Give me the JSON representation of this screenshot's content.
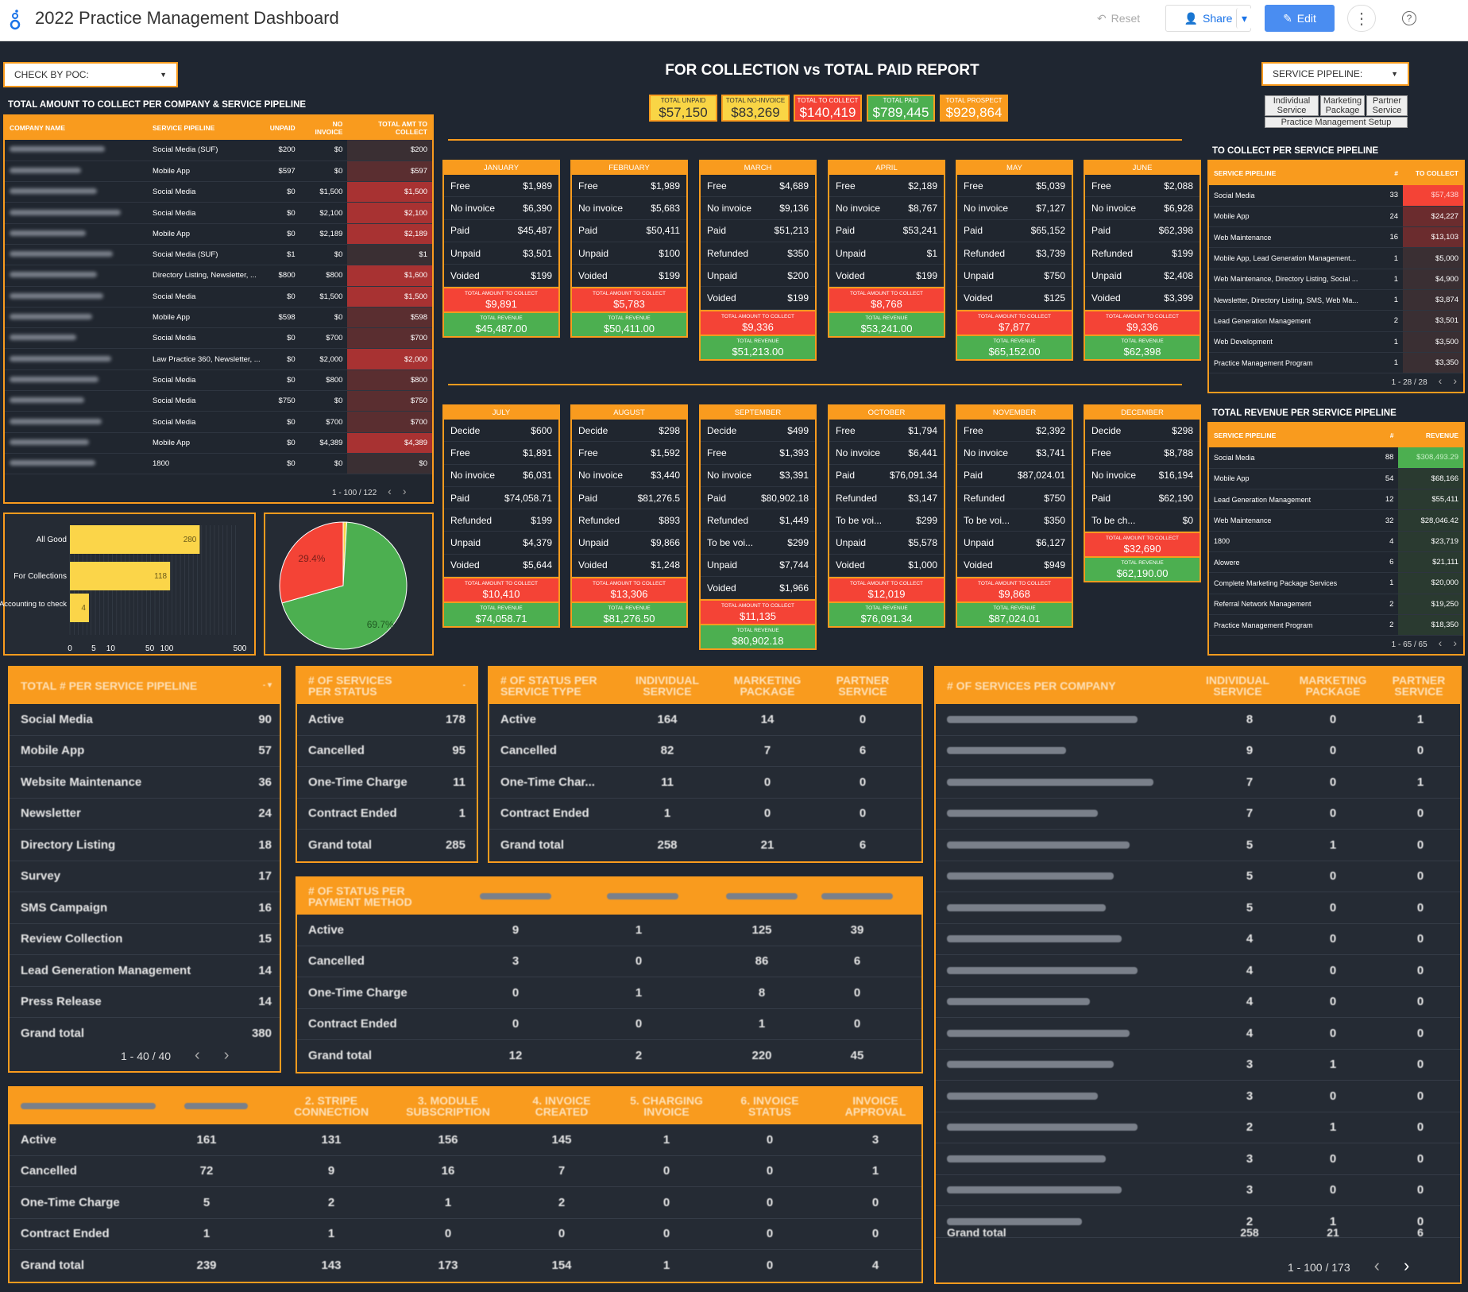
{
  "app": {
    "title": "2022 Practice Management Dashboard",
    "reset": "Reset",
    "share": "Share",
    "edit": "Edit"
  },
  "filters": {
    "poc": "CHECK BY POC:",
    "pipeline": "SERVICE PIPELINE:",
    "buttons": [
      "Individual Service",
      "Marketing Package",
      "Partner Service",
      "Practice Management Setup"
    ]
  },
  "report_title": "FOR COLLECTION vs TOTAL PAID REPORT",
  "kpis": [
    {
      "label": "TOTAL UNPAID",
      "value": "$57,150"
    },
    {
      "label": "TOTAL NO-INVOICE",
      "value": "$83,269"
    },
    {
      "label": "TOTAL TO COLLECT",
      "value": "$140,419"
    },
    {
      "label": "TOTAL PAID",
      "value": "$789,445"
    },
    {
      "label": "TOTAL PROSPECT",
      "value": "$929,864"
    }
  ],
  "company_table": {
    "title": "TOTAL AMOUNT TO COLLECT PER COMPANY & SERVICE PIPELINE",
    "headers": [
      "COMPANY NAME",
      "SERVICE PIPELINE",
      "UNPAID",
      "NO INVOICE",
      "TOTAL AMT TO COLLECT"
    ],
    "rows": [
      [
        "Social Media (SUF)",
        "$200",
        "$0",
        "$200"
      ],
      [
        "Mobile App",
        "$597",
        "$0",
        "$597"
      ],
      [
        "Social Media",
        "$0",
        "$1,500",
        "$1,500"
      ],
      [
        "Social Media",
        "$0",
        "$2,100",
        "$2,100"
      ],
      [
        "Mobile App",
        "$0",
        "$2,189",
        "$2,189"
      ],
      [
        "Social Media (SUF)",
        "$1",
        "$0",
        "$1"
      ],
      [
        "Directory Listing, Newsletter, ...",
        "$800",
        "$800",
        "$1,600"
      ],
      [
        "Social Media",
        "$0",
        "$1,500",
        "$1,500"
      ],
      [
        "Mobile App",
        "$598",
        "$0",
        "$598"
      ],
      [
        "Social Media",
        "$0",
        "$700",
        "$700"
      ],
      [
        "Law Practice 360, Newsletter, ...",
        "$0",
        "$2,000",
        "$2,000"
      ],
      [
        "Social Media",
        "$0",
        "$800",
        "$800"
      ],
      [
        "Social Media",
        "$750",
        "$0",
        "$750"
      ],
      [
        "Social Media",
        "$0",
        "$700",
        "$700"
      ],
      [
        "Mobile App",
        "$0",
        "$4,389",
        "$4,389"
      ],
      [
        "1800",
        "$0",
        "$0",
        "$0"
      ]
    ],
    "pager": "1 - 100 / 122"
  },
  "bar_chart": {
    "categories": [
      "All Good",
      "For Collections",
      "Accounting to check"
    ],
    "values": [
      280,
      118,
      4
    ],
    "ticks": [
      "0",
      "5",
      "10",
      "50",
      "100",
      "500"
    ]
  },
  "pie_chart": {
    "slices": [
      {
        "label": "29.4%",
        "value": 29.4,
        "color": "#f44336"
      },
      {
        "label": "69.7%",
        "value": 69.7,
        "color": "#4caf50"
      },
      {
        "label": "",
        "value": 0.9,
        "color": "#f9d545"
      }
    ]
  },
  "months": [
    {
      "name": "JANUARY",
      "rows": [
        [
          "Free",
          "$1,989"
        ],
        [
          "No invoice",
          "$6,390"
        ],
        [
          "Paid",
          "$45,487"
        ],
        [
          "Unpaid",
          "$3,501"
        ],
        [
          "Voided",
          "$199"
        ]
      ],
      "collect": "$9,891",
      "revenue": "$45,487.00"
    },
    {
      "name": "FEBRUARY",
      "rows": [
        [
          "Free",
          "$1,989"
        ],
        [
          "No invoice",
          "$5,683"
        ],
        [
          "Paid",
          "$50,411"
        ],
        [
          "Unpaid",
          "$100"
        ],
        [
          "Voided",
          "$199"
        ]
      ],
      "collect": "$5,783",
      "revenue": "$50,411.00"
    },
    {
      "name": "MARCH",
      "rows": [
        [
          "Free",
          "$4,689"
        ],
        [
          "No invoice",
          "$9,136"
        ],
        [
          "Paid",
          "$51,213"
        ],
        [
          "Refunded",
          "$350"
        ],
        [
          "Unpaid",
          "$200"
        ],
        [
          "Voided",
          "$199"
        ]
      ],
      "collect": "$9,336",
      "revenue": "$51,213.00"
    },
    {
      "name": "APRIL",
      "rows": [
        [
          "Free",
          "$2,189"
        ],
        [
          "No invoice",
          "$8,767"
        ],
        [
          "Paid",
          "$53,241"
        ],
        [
          "Unpaid",
          "$1"
        ],
        [
          "Voided",
          "$199"
        ]
      ],
      "collect": "$8,768",
      "revenue": "$53,241.00"
    },
    {
      "name": "MAY",
      "rows": [
        [
          "Free",
          "$5,039"
        ],
        [
          "No invoice",
          "$7,127"
        ],
        [
          "Paid",
          "$65,152"
        ],
        [
          "Refunded",
          "$3,739"
        ],
        [
          "Unpaid",
          "$750"
        ],
        [
          "Voided",
          "$125"
        ]
      ],
      "collect": "$7,877",
      "revenue": "$65,152.00"
    },
    {
      "name": "JUNE",
      "rows": [
        [
          "Free",
          "$2,088"
        ],
        [
          "No invoice",
          "$6,928"
        ],
        [
          "Paid",
          "$62,398"
        ],
        [
          "Refunded",
          "$199"
        ],
        [
          "Unpaid",
          "$2,408"
        ],
        [
          "Voided",
          "$3,399"
        ]
      ],
      "collect": "$9,336",
      "revenue": "$62,398"
    },
    {
      "name": "JULY",
      "rows": [
        [
          "Decide",
          "$600"
        ],
        [
          "Free",
          "$1,891"
        ],
        [
          "No invoice",
          "$6,031"
        ],
        [
          "Paid",
          "$74,058.71"
        ],
        [
          "Refunded",
          "$199"
        ],
        [
          "Unpaid",
          "$4,379"
        ],
        [
          "Voided",
          "$5,644"
        ]
      ],
      "collect": "$10,410",
      "revenue": "$74,058.71"
    },
    {
      "name": "AUGUST",
      "rows": [
        [
          "Decide",
          "$298"
        ],
        [
          "Free",
          "$1,592"
        ],
        [
          "No invoice",
          "$3,440"
        ],
        [
          "Paid",
          "$81,276.5"
        ],
        [
          "Refunded",
          "$893"
        ],
        [
          "Unpaid",
          "$9,866"
        ],
        [
          "Voided",
          "$1,248"
        ]
      ],
      "collect": "$13,306",
      "revenue": "$81,276.50"
    },
    {
      "name": "SEPTEMBER",
      "rows": [
        [
          "Decide",
          "$499"
        ],
        [
          "Free",
          "$1,393"
        ],
        [
          "No invoice",
          "$3,391"
        ],
        [
          "Paid",
          "$80,902.18"
        ],
        [
          "Refunded",
          "$1,449"
        ],
        [
          "To be voi...",
          "$299"
        ],
        [
          "Unpaid",
          "$7,744"
        ],
        [
          "Voided",
          "$1,966"
        ]
      ],
      "collect": "$11,135",
      "revenue": "$80,902.18"
    },
    {
      "name": "OCTOBER",
      "rows": [
        [
          "Free",
          "$1,794"
        ],
        [
          "No invoice",
          "$6,441"
        ],
        [
          "Paid",
          "$76,091.34"
        ],
        [
          "Refunded",
          "$3,147"
        ],
        [
          "To be voi...",
          "$299"
        ],
        [
          "Unpaid",
          "$5,578"
        ],
        [
          "Voided",
          "$1,000"
        ]
      ],
      "collect": "$12,019",
      "revenue": "$76,091.34"
    },
    {
      "name": "NOVEMBER",
      "rows": [
        [
          "Free",
          "$2,392"
        ],
        [
          "No invoice",
          "$3,741"
        ],
        [
          "Paid",
          "$87,024.01"
        ],
        [
          "Refunded",
          "$750"
        ],
        [
          "To be voi...",
          "$350"
        ],
        [
          "Unpaid",
          "$6,127"
        ],
        [
          "Voided",
          "$949"
        ]
      ],
      "collect": "$9,868",
      "revenue": "$87,024.01"
    },
    {
      "name": "DECEMBER",
      "rows": [
        [
          "Decide",
          "$298"
        ],
        [
          "Free",
          "$8,788"
        ],
        [
          "No invoice",
          "$16,194"
        ],
        [
          "Paid",
          "$62,190"
        ],
        [
          "To be ch...",
          "$0"
        ]
      ],
      "collect": "$32,690",
      "revenue": "$62,190.00"
    }
  ],
  "month_labels": {
    "collect": "TOTAL AMOUNT TO COLLECT",
    "revenue": "TOTAL REVENUE"
  },
  "collect_pipeline": {
    "title": "TO COLLECT PER SERVICE PIPELINE",
    "headers": [
      "SERVICE PIPELINE",
      "#",
      "TO COLLECT"
    ],
    "rows": [
      [
        "Social Media",
        "33",
        "$57,438"
      ],
      [
        "Mobile App",
        "24",
        "$24,227"
      ],
      [
        "Web Maintenance",
        "16",
        "$13,103"
      ],
      [
        "Mobile App, Lead Generation Management...",
        "1",
        "$5,000"
      ],
      [
        "Web Maintenance, Directory Listing, Social ...",
        "1",
        "$4,900"
      ],
      [
        "Newsletter, Directory Listing, SMS, Web Ma...",
        "1",
        "$3,874"
      ],
      [
        "Lead Generation Management",
        "2",
        "$3,501"
      ],
      [
        "Web Development",
        "1",
        "$3,500"
      ],
      [
        "Practice Management Program",
        "1",
        "$3,350"
      ]
    ],
    "pager": "1 - 28 / 28"
  },
  "revenue_pipeline": {
    "title": "TOTAL REVENUE PER SERVICE PIPELINE",
    "headers": [
      "SERVICE PIPELINE",
      "#",
      "REVENUE"
    ],
    "rows": [
      [
        "Social Media",
        "88",
        "$308,493.29"
      ],
      [
        "Mobile App",
        "54",
        "$68,166"
      ],
      [
        "Lead Generation Management",
        "12",
        "$55,411"
      ],
      [
        "Web Maintenance",
        "32",
        "$28,046.42"
      ],
      [
        "1800",
        "4",
        "$23,719"
      ],
      [
        "Alowere",
        "6",
        "$21,111"
      ],
      [
        "Complete Marketing Package Services",
        "1",
        "$20,000"
      ],
      [
        "Referral Network Management",
        "2",
        "$19,250"
      ],
      [
        "Practice Management Program",
        "2",
        "$18,350"
      ]
    ],
    "pager": "1 - 65 / 65"
  },
  "service_pipeline_count": {
    "title": "TOTAL # PER SERVICE PIPELINE",
    "rows": [
      [
        "Social Media",
        "90"
      ],
      [
        "Mobile App",
        "57"
      ],
      [
        "Website Maintenance",
        "36"
      ],
      [
        "Newsletter",
        "24"
      ],
      [
        "Directory Listing",
        "18"
      ],
      [
        "Survey",
        "17"
      ],
      [
        "SMS Campaign",
        "16"
      ],
      [
        "Review Collection",
        "15"
      ],
      [
        "Lead Generation Management",
        "14"
      ],
      [
        "Press Release",
        "14"
      ]
    ],
    "total": [
      "Grand total",
      "380"
    ],
    "pager": "1 - 40 / 40"
  },
  "services_per_status": {
    "title": "# OF SERVICES PER STATUS",
    "rows": [
      [
        "Active",
        "178"
      ],
      [
        "Cancelled",
        "95"
      ],
      [
        "One-Time Charge",
        "11"
      ],
      [
        "Contract Ended",
        "1"
      ],
      [
        "Grand total",
        "285"
      ]
    ]
  },
  "status_per_type": {
    "title": "# OF STATUS PER SERVICE TYPE",
    "headers": [
      "INDIVIDUAL SERVICE",
      "MARKETING PACKAGE",
      "PARTNER SERVICE"
    ],
    "rows": [
      [
        "Active",
        "164",
        "14",
        "0"
      ],
      [
        "Cancelled",
        "82",
        "7",
        "6"
      ],
      [
        "One-Time Char...",
        "11",
        "0",
        "0"
      ],
      [
        "Contract Ended",
        "1",
        "0",
        "0"
      ],
      [
        "Grand total",
        "258",
        "21",
        "6"
      ]
    ]
  },
  "status_per_payment": {
    "title": "# OF STATUS PER PAYMENT METHOD",
    "rows": [
      [
        "Active",
        "9",
        "1",
        "125",
        "39"
      ],
      [
        "Cancelled",
        "3",
        "0",
        "86",
        "6"
      ],
      [
        "One-Time Charge",
        "0",
        "1",
        "8",
        "0"
      ],
      [
        "Contract Ended",
        "0",
        "0",
        "1",
        "0"
      ],
      [
        "Grand total",
        "12",
        "2",
        "220",
        "45"
      ]
    ]
  },
  "stripe_steps": {
    "headers": [
      "2. STRIPE CONNECTION",
      "3. MODULE SUBSCRIPTION",
      "4. INVOICE CREATED",
      "5. CHARGING INVOICE",
      "6. INVOICE STATUS",
      "INVOICE APPROVAL"
    ],
    "rows": [
      [
        "Active",
        "161",
        "131",
        "156",
        "145",
        "1",
        "0",
        "3"
      ],
      [
        "Cancelled",
        "72",
        "9",
        "16",
        "7",
        "0",
        "0",
        "1"
      ],
      [
        "One-Time Charge",
        "5",
        "2",
        "1",
        "2",
        "0",
        "0",
        "0"
      ],
      [
        "Contract Ended",
        "1",
        "1",
        "0",
        "0",
        "0",
        "0",
        "0"
      ],
      [
        "Grand total",
        "239",
        "143",
        "173",
        "154",
        "1",
        "0",
        "4"
      ]
    ]
  },
  "services_per_company": {
    "title": "# OF SERVICES PER COMPANY",
    "headers": [
      "INDIVIDUAL SERVICE",
      "MARKETING PACKAGE",
      "PARTNER SERVICE"
    ],
    "rows": [
      [
        "8",
        "0",
        "1"
      ],
      [
        "9",
        "0",
        "0"
      ],
      [
        "7",
        "0",
        "1"
      ],
      [
        "7",
        "0",
        "0"
      ],
      [
        "5",
        "1",
        "0"
      ],
      [
        "5",
        "0",
        "0"
      ],
      [
        "5",
        "0",
        "0"
      ],
      [
        "4",
        "0",
        "0"
      ],
      [
        "4",
        "0",
        "0"
      ],
      [
        "4",
        "0",
        "0"
      ],
      [
        "4",
        "0",
        "0"
      ],
      [
        "3",
        "1",
        "0"
      ],
      [
        "3",
        "0",
        "0"
      ],
      [
        "2",
        "1",
        "0"
      ],
      [
        "3",
        "0",
        "0"
      ],
      [
        "3",
        "0",
        "0"
      ],
      [
        "2",
        "1",
        "0"
      ]
    ],
    "total": [
      "Grand total",
      "258",
      "21",
      "6"
    ],
    "pager": "1 - 100 / 173"
  }
}
